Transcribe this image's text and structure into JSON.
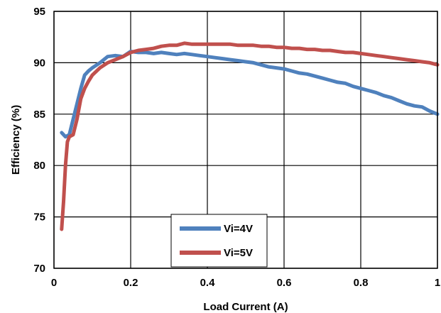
{
  "chart_data": {
    "type": "line",
    "title": "",
    "xlabel": "Load Current (A)",
    "ylabel": "Efficiency (%)",
    "xlim": [
      0,
      1
    ],
    "ylim": [
      70,
      95
    ],
    "x_ticks": [
      0,
      0.2,
      0.4,
      0.6,
      0.8,
      1
    ],
    "x_tick_labels": [
      "0",
      "0.2",
      "0.4",
      "0.6",
      "0.8",
      "1"
    ],
    "y_ticks": [
      70,
      75,
      80,
      85,
      90,
      95
    ],
    "y_tick_labels": [
      "70",
      "75",
      "80",
      "85",
      "90",
      "95"
    ],
    "grid": true,
    "legend_position": "bottom-center",
    "series": [
      {
        "name": "Vi=4V",
        "color": "#4f81bd",
        "x": [
          0.02,
          0.03,
          0.04,
          0.05,
          0.06,
          0.07,
          0.08,
          0.09,
          0.1,
          0.12,
          0.14,
          0.16,
          0.18,
          0.2,
          0.22,
          0.24,
          0.26,
          0.28,
          0.3,
          0.32,
          0.34,
          0.36,
          0.38,
          0.4,
          0.42,
          0.44,
          0.46,
          0.48,
          0.5,
          0.52,
          0.54,
          0.56,
          0.58,
          0.6,
          0.62,
          0.64,
          0.66,
          0.68,
          0.7,
          0.72,
          0.74,
          0.76,
          0.78,
          0.8,
          0.82,
          0.84,
          0.86,
          0.88,
          0.9,
          0.92,
          0.94,
          0.96,
          0.98,
          1.0
        ],
        "y": [
          83.2,
          82.8,
          83.0,
          84.5,
          86.0,
          87.5,
          88.8,
          89.2,
          89.5,
          90.0,
          90.6,
          90.7,
          90.6,
          91.1,
          91.0,
          91.0,
          90.9,
          91.0,
          90.9,
          90.8,
          90.9,
          90.8,
          90.7,
          90.6,
          90.5,
          90.4,
          90.3,
          90.2,
          90.1,
          90.0,
          89.8,
          89.6,
          89.5,
          89.4,
          89.2,
          89.0,
          88.9,
          88.7,
          88.5,
          88.3,
          88.1,
          88.0,
          87.7,
          87.5,
          87.3,
          87.1,
          86.8,
          86.6,
          86.3,
          86.0,
          85.8,
          85.7,
          85.3,
          85.0
        ]
      },
      {
        "name": "Vi=5V",
        "color": "#c0504d",
        "x": [
          0.02,
          0.025,
          0.03,
          0.035,
          0.04,
          0.05,
          0.06,
          0.07,
          0.08,
          0.09,
          0.1,
          0.12,
          0.14,
          0.16,
          0.18,
          0.2,
          0.22,
          0.24,
          0.26,
          0.28,
          0.3,
          0.32,
          0.34,
          0.36,
          0.38,
          0.4,
          0.42,
          0.44,
          0.46,
          0.48,
          0.5,
          0.52,
          0.54,
          0.56,
          0.58,
          0.6,
          0.62,
          0.64,
          0.66,
          0.68,
          0.7,
          0.72,
          0.74,
          0.76,
          0.78,
          0.8,
          0.82,
          0.84,
          0.86,
          0.88,
          0.9,
          0.92,
          0.94,
          0.96,
          0.98,
          1.0
        ],
        "y": [
          73.8,
          76.5,
          80.0,
          82.3,
          82.8,
          83.0,
          84.5,
          86.5,
          87.5,
          88.2,
          88.8,
          89.5,
          90.0,
          90.3,
          90.6,
          91.0,
          91.2,
          91.3,
          91.4,
          91.6,
          91.7,
          91.7,
          91.9,
          91.8,
          91.8,
          91.8,
          91.8,
          91.8,
          91.8,
          91.7,
          91.7,
          91.7,
          91.6,
          91.6,
          91.5,
          91.5,
          91.4,
          91.4,
          91.3,
          91.3,
          91.2,
          91.2,
          91.1,
          91.0,
          91.0,
          90.9,
          90.8,
          90.7,
          90.6,
          90.5,
          90.4,
          90.3,
          90.2,
          90.1,
          90.0,
          89.8
        ]
      }
    ]
  }
}
